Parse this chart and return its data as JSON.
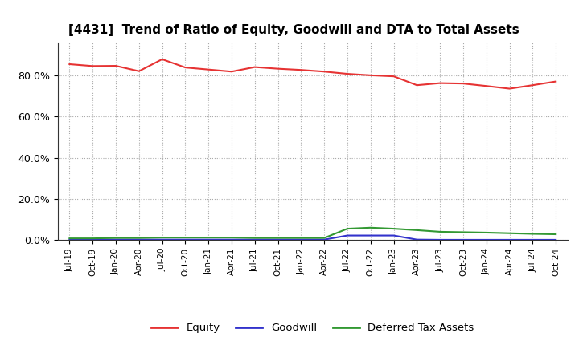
{
  "title": "[4431]  Trend of Ratio of Equity, Goodwill and DTA to Total Assets",
  "title_fontsize": 11,
  "background_color": "#ffffff",
  "plot_background": "#ffffff",
  "x_labels": [
    "Jul-19",
    "Oct-19",
    "Jan-20",
    "Apr-20",
    "Jul-20",
    "Oct-20",
    "Jan-21",
    "Apr-21",
    "Jul-21",
    "Oct-21",
    "Jan-22",
    "Apr-22",
    "Jul-22",
    "Oct-22",
    "Jan-23",
    "Apr-23",
    "Jul-23",
    "Oct-23",
    "Jan-24",
    "Apr-24",
    "Jul-24",
    "Oct-24"
  ],
  "equity": [
    0.854,
    0.845,
    0.846,
    0.82,
    0.878,
    0.838,
    0.828,
    0.818,
    0.84,
    0.832,
    0.826,
    0.818,
    0.807,
    0.8,
    0.795,
    0.752,
    0.762,
    0.76,
    0.748,
    0.735,
    0.752,
    0.77
  ],
  "goodwill": [
    0.002,
    0.002,
    0.002,
    0.002,
    0.002,
    0.002,
    0.002,
    0.002,
    0.002,
    0.002,
    0.002,
    0.002,
    0.022,
    0.022,
    0.022,
    0.002,
    0.001,
    0.001,
    0.001,
    0.001,
    0.001,
    0.001
  ],
  "dta": [
    0.008,
    0.008,
    0.01,
    0.01,
    0.012,
    0.012,
    0.012,
    0.012,
    0.01,
    0.01,
    0.01,
    0.01,
    0.055,
    0.06,
    0.055,
    0.048,
    0.04,
    0.038,
    0.036,
    0.033,
    0.03,
    0.028
  ],
  "equity_color": "#e63333",
  "goodwill_color": "#3333cc",
  "dta_color": "#339933",
  "ylim": [
    0.0,
    0.96
  ],
  "yticks": [
    0.0,
    0.2,
    0.4,
    0.6,
    0.8
  ],
  "ytick_labels": [
    "0.0%",
    "20.0%",
    "40.0%",
    "60.0%",
    "80.0%"
  ],
  "legend_labels": [
    "Equity",
    "Goodwill",
    "Deferred Tax Assets"
  ]
}
